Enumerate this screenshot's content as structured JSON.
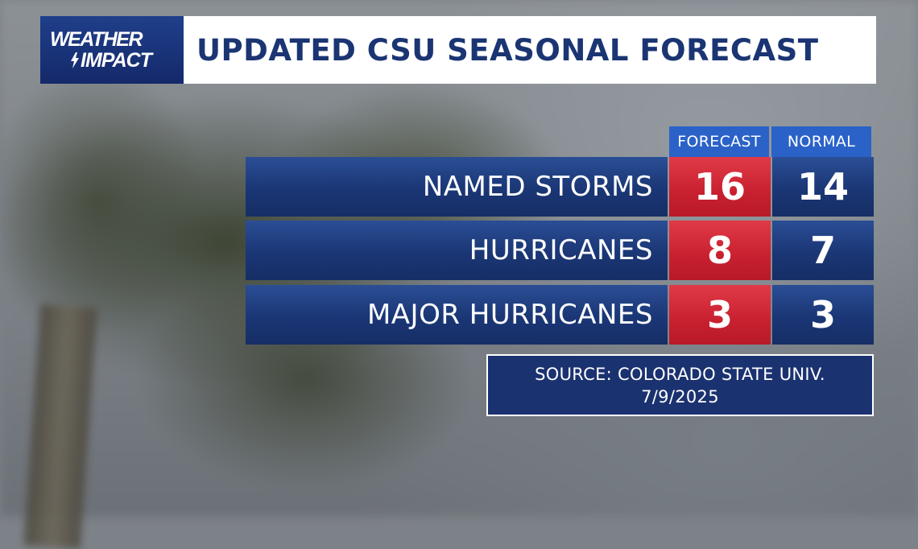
{
  "logo": {
    "line1": "WEATHER",
    "line2": "IMPACT"
  },
  "title": "UPDATED CSU SEASONAL FORECAST",
  "chart_data": {
    "type": "table",
    "title": "UPDATED CSU SEASONAL FORECAST",
    "columns": [
      "FORECAST",
      "NORMAL"
    ],
    "rows": [
      {
        "label": "NAMED STORMS",
        "forecast": "16",
        "normal": "14"
      },
      {
        "label": "HURRICANES",
        "forecast": "8",
        "normal": "7"
      },
      {
        "label": "MAJOR HURRICANES",
        "forecast": "3",
        "normal": "3"
      }
    ]
  },
  "source": {
    "line1": "SOURCE: COLORADO STATE UNIV.",
    "line2": "7/9/2025"
  },
  "colors": {
    "navy": "#1a3675",
    "red": "#c8202f",
    "header_blue": "#2a62c8",
    "title_text": "#1b3573"
  }
}
